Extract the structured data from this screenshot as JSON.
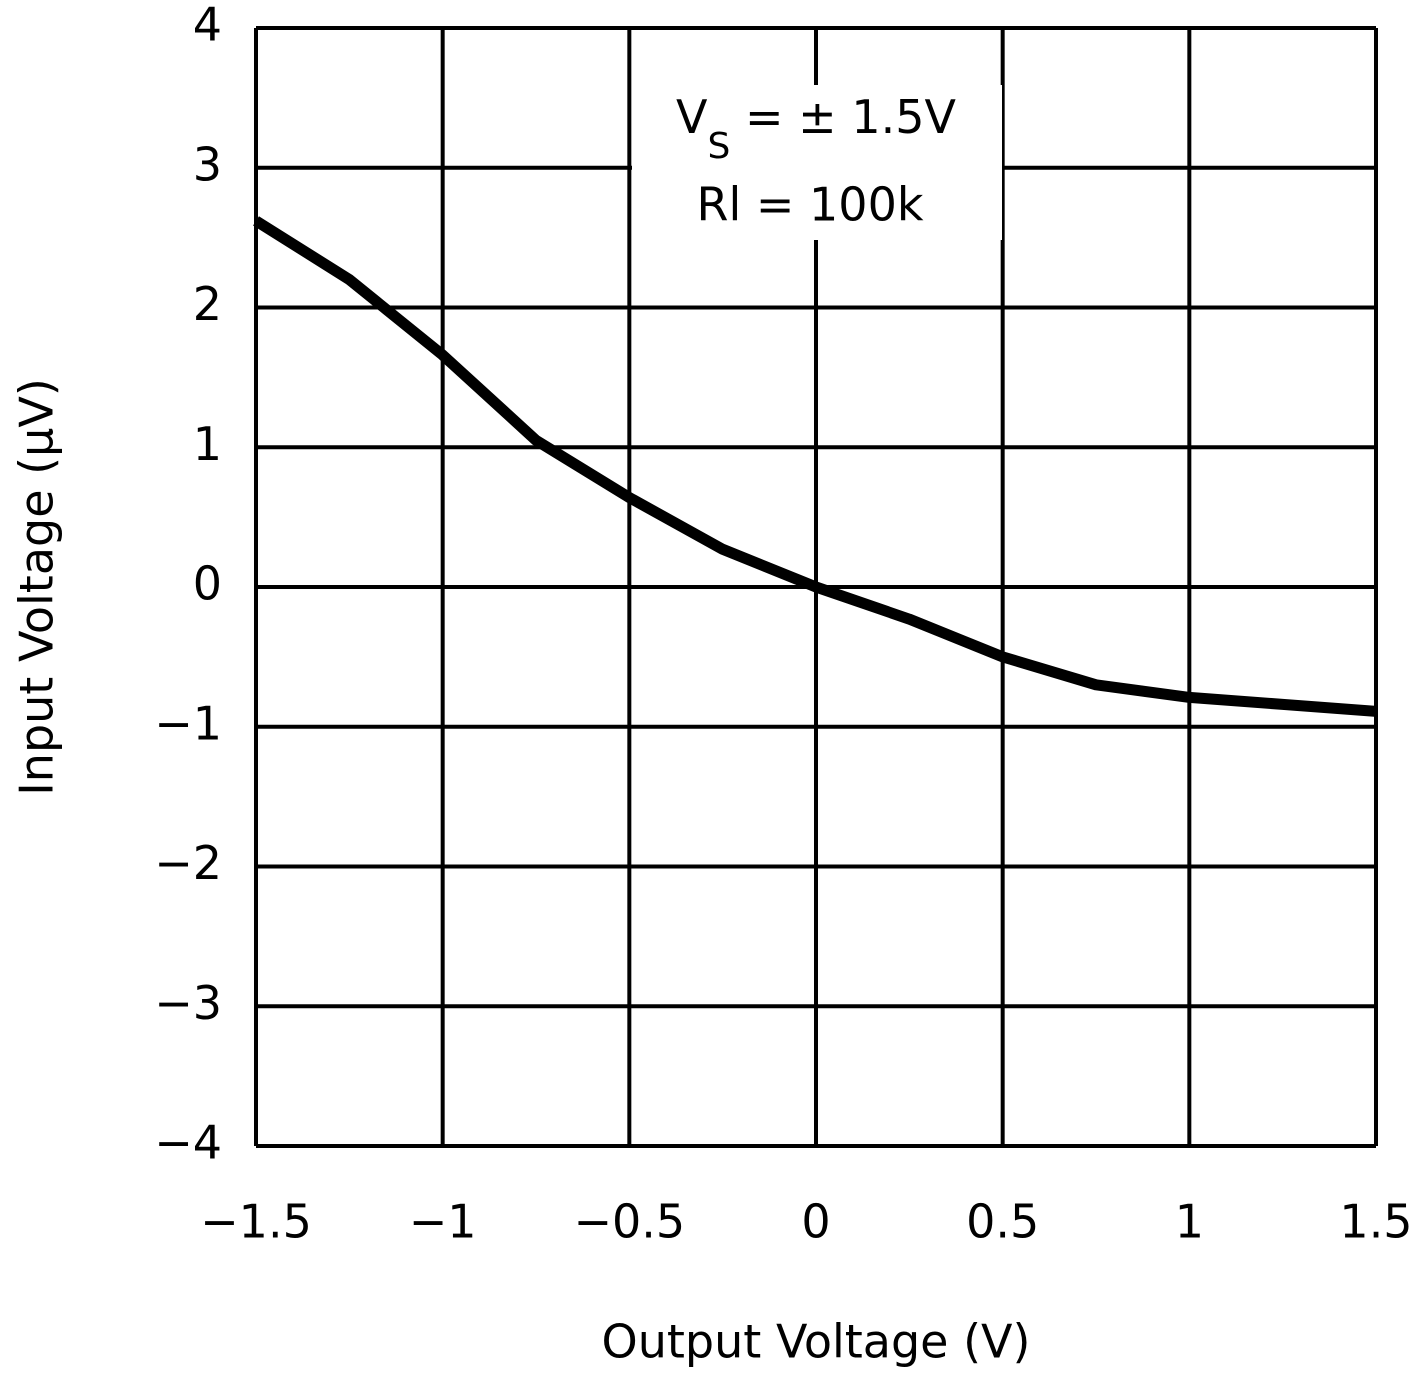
{
  "chart_data": {
    "type": "line",
    "xlabel": "Output Voltage (V)",
    "ylabel": "Input Voltage (μV)",
    "annotation": {
      "line1": [
        "V",
        "S",
        " = ± 1.5V"
      ],
      "line2": "Rl = 100k"
    },
    "x": [
      -1.5,
      -1.25,
      -1,
      -0.75,
      -0.5,
      -0.25,
      0,
      0.25,
      0.5,
      0.75,
      1,
      1.25,
      1.5
    ],
    "series": [
      {
        "color": "#000000",
        "values": [
          2.62,
          2.2,
          1.66,
          1.05,
          0.64,
          0.27,
          0,
          -0.23,
          -0.5,
          -0.7,
          -0.79,
          -0.84,
          -0.89
        ]
      }
    ],
    "xlim": [
      -1.5,
      1.5
    ],
    "xticks": [
      {
        "value": -1.5,
        "label": "−1.5"
      },
      {
        "value": -1,
        "label": "−1"
      },
      {
        "value": -0.5,
        "label": "−0.5"
      },
      0,
      0.5,
      1,
      1.5
    ],
    "ylim": [
      -4,
      4
    ],
    "yticks": [
      {
        "value": -4,
        "label": "−4"
      },
      {
        "value": -3,
        "label": "−3"
      },
      {
        "value": -2,
        "label": "−2"
      },
      {
        "value": -1,
        "label": "−1"
      },
      0,
      1,
      2,
      3,
      4
    ],
    "grid": true
  }
}
